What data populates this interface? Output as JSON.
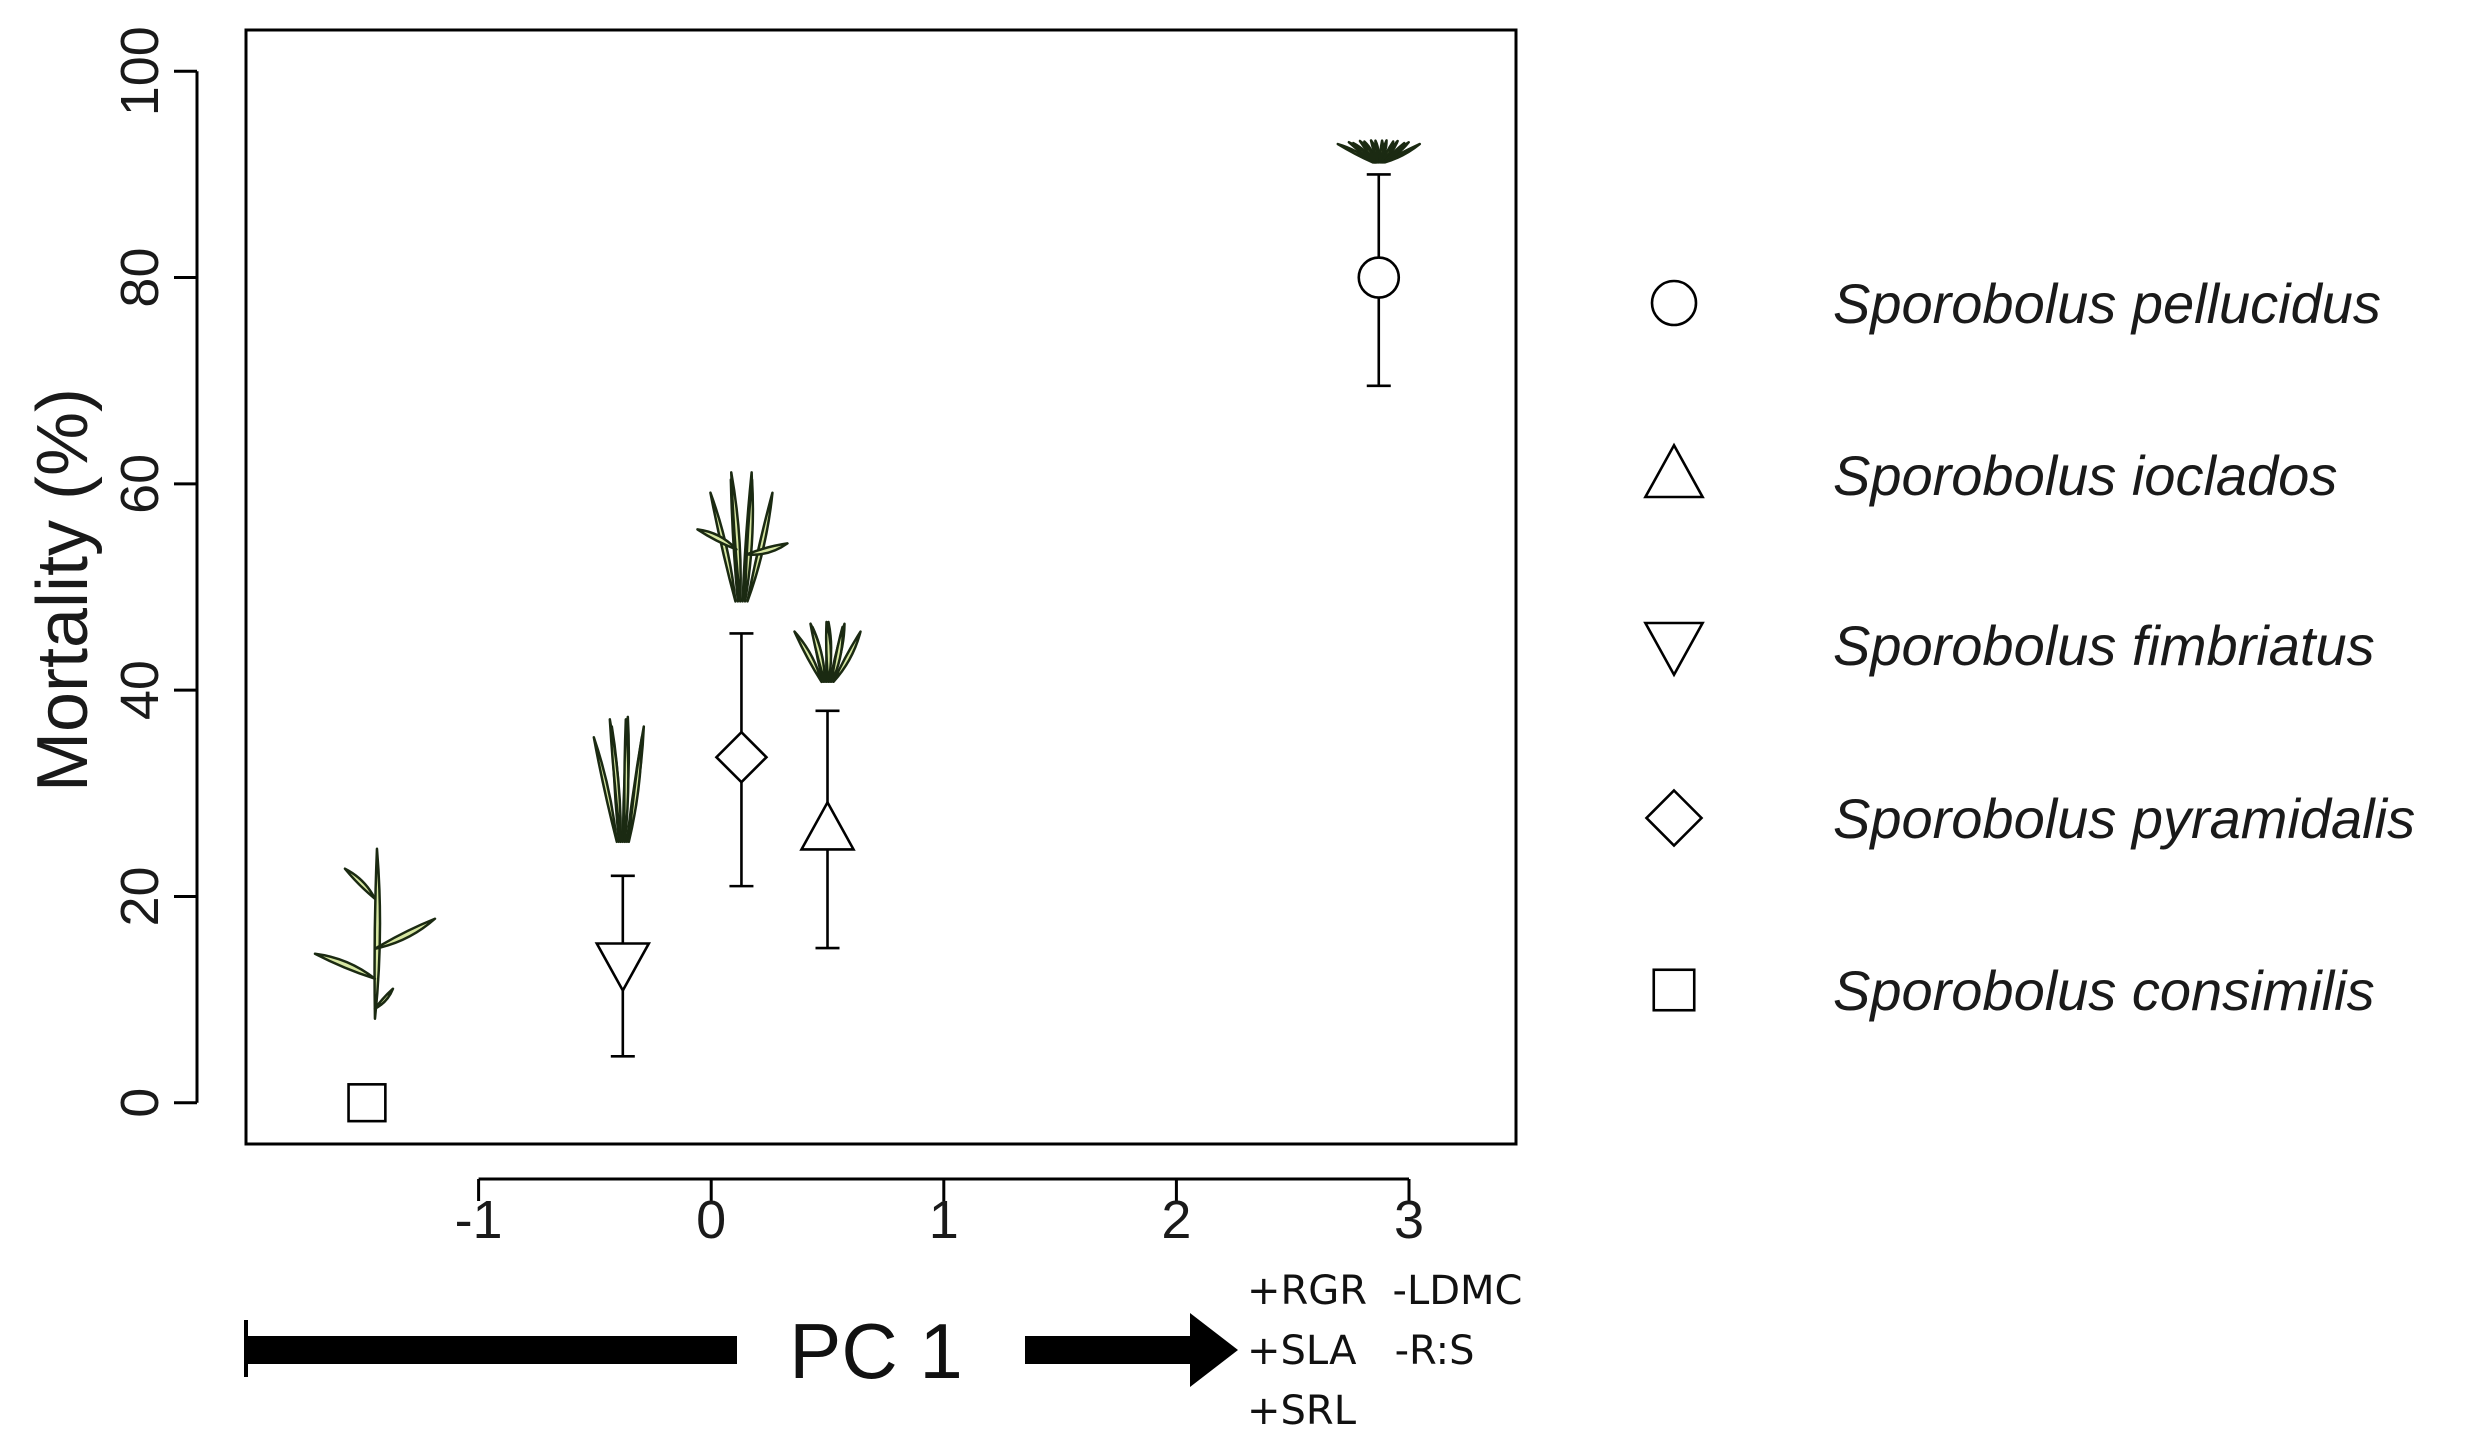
{
  "chart_data": {
    "type": "scatter",
    "xlabel": "PC 1",
    "ylabel": "Mortality (%)",
    "xlim": [
      -2,
      3.46
    ],
    "ylim": [
      -4,
      104
    ],
    "xticks": [
      -1,
      0,
      1,
      2,
      3
    ],
    "yticks": [
      0,
      20,
      40,
      60,
      80,
      100
    ],
    "grid": false,
    "legend_position": "right",
    "series": [
      {
        "name": "Sporobolus pellucidus",
        "marker": "circle",
        "x": 2.87,
        "y": 80,
        "err_low": 69.5,
        "err_high": 90,
        "has_plant_icon": true
      },
      {
        "name": "Sporobolus ioclados",
        "marker": "triangle-up",
        "x": 0.5,
        "y": 26.5,
        "err_low": 15,
        "err_high": 38,
        "has_plant_icon": true
      },
      {
        "name": "Sporobolus fimbriatus",
        "marker": "triangle-down",
        "x": -0.38,
        "y": 13.5,
        "err_low": 4.5,
        "err_high": 22,
        "has_plant_icon": true
      },
      {
        "name": "Sporobolus pyramidalis",
        "marker": "diamond",
        "x": 0.13,
        "y": 33.5,
        "err_low": 21,
        "err_high": 45.5,
        "has_plant_icon": true
      },
      {
        "name": "Sporobolus consimilis",
        "marker": "square",
        "x": -1.48,
        "y": 0,
        "err_low": null,
        "err_high": null,
        "has_plant_icon": true
      }
    ],
    "pc_axis_traits": [
      "+RGR  -LDMC",
      "+SLA   -R:S",
      "+SRL"
    ]
  },
  "colors": {
    "ink": "#000000",
    "plant_fill": "#d7e7a2",
    "plant_stroke": "#1b2a12"
  }
}
